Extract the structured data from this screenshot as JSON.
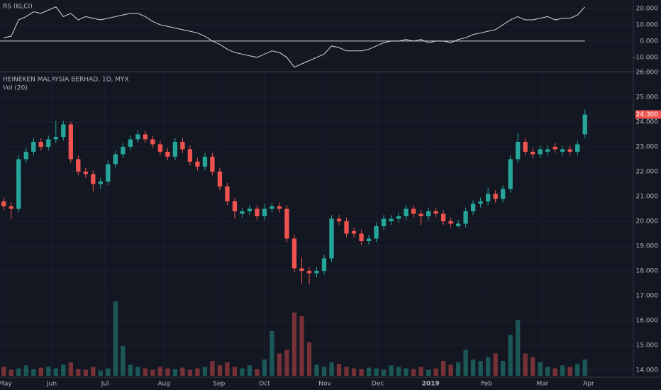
{
  "chart_data": [
    {
      "type": "line",
      "title": "RS (KLCI)",
      "color": "#d1d4dc",
      "values": [
        2,
        3,
        13,
        15,
        18,
        17,
        19,
        21,
        15,
        17,
        13,
        15,
        14,
        13,
        14,
        15,
        16,
        17,
        17,
        15,
        12,
        10,
        9,
        8,
        7,
        6,
        5,
        3,
        0,
        -2,
        -5,
        -7,
        -8,
        -9,
        -10,
        -8,
        -6,
        -7,
        -10,
        -16,
        -14,
        -12,
        -10,
        -8,
        -3,
        -4,
        -6,
        -6,
        -6,
        -5,
        -3,
        -1,
        0,
        0,
        1,
        0,
        1,
        -1,
        0,
        0,
        -1,
        1,
        2,
        4,
        5,
        6,
        7,
        10,
        13,
        15,
        13,
        13,
        14,
        15,
        13,
        14,
        14,
        16,
        21
      ],
      "ylim": [
        -18.3,
        25.2
      ],
      "yticks": [
        {
          "value": 20,
          "label": "20.000"
        },
        {
          "value": 10,
          "label": "10.000"
        },
        {
          "value": 0,
          "label": "0.000"
        },
        {
          "value": -10,
          "label": "-10.000"
        }
      ]
    },
    {
      "type": "candlestick",
      "title": "HEINEKEN MALAYSIA BERHAD, 1D, MYX",
      "subtitle": "Vol (20)",
      "up_color": "#26a69a",
      "down_color": "#ef5350",
      "open": [
        20.8,
        20.6,
        20.5,
        22.5,
        22.8,
        23.2,
        23.0,
        23.3,
        23.4,
        23.9,
        22.5,
        22.0,
        21.9,
        21.5,
        21.6,
        22.3,
        22.7,
        23.0,
        23.3,
        23.5,
        23.3,
        23.1,
        22.8,
        22.6,
        23.2,
        22.9,
        22.4,
        22.2,
        22.6,
        22.0,
        21.4,
        20.8,
        20.3,
        20.4,
        20.5,
        20.2,
        20.5,
        20.6,
        20.5,
        19.3,
        18.1,
        18.0,
        17.9,
        18.0,
        18.5,
        20.1,
        20.0,
        19.6,
        19.5,
        19.2,
        19.3,
        19.8,
        20.0,
        20.1,
        20.2,
        20.5,
        20.3,
        20.2,
        20.4,
        20.3,
        20.0,
        19.8,
        19.9,
        20.4,
        20.7,
        20.8,
        21.1,
        20.9,
        21.3,
        22.5,
        23.2,
        22.8,
        22.7,
        22.8,
        23.0,
        22.8,
        22.9,
        22.8,
        23.5
      ],
      "high": [
        20.95,
        20.75,
        22.65,
        22.95,
        23.35,
        23.35,
        23.45,
        24.05,
        24.05,
        24.0,
        22.65,
        22.15,
        22.05,
        21.75,
        22.45,
        22.85,
        23.15,
        23.45,
        23.65,
        23.65,
        23.45,
        23.25,
        22.95,
        23.35,
        23.35,
        23.05,
        22.55,
        22.75,
        22.75,
        22.15,
        21.55,
        20.95,
        20.55,
        20.65,
        20.65,
        20.7,
        20.75,
        20.75,
        20.65,
        19.45,
        18.55,
        18.15,
        18.15,
        18.65,
        20.25,
        20.25,
        20.15,
        19.75,
        19.65,
        19.45,
        19.95,
        20.25,
        20.25,
        20.35,
        20.65,
        20.65,
        20.45,
        20.55,
        20.55,
        20.45,
        20.15,
        20.05,
        20.55,
        20.85,
        20.95,
        21.35,
        21.25,
        21.45,
        22.65,
        23.55,
        23.35,
        22.95,
        23.05,
        23.05,
        23.15,
        23.05,
        23.05,
        23.25,
        24.5
      ],
      "low": [
        20.45,
        20.1,
        20.35,
        22.35,
        22.65,
        22.85,
        22.85,
        23.15,
        23.25,
        22.35,
        21.85,
        21.75,
        21.2,
        21.3,
        21.45,
        22.15,
        22.55,
        22.85,
        23.15,
        23.15,
        22.95,
        22.65,
        22.45,
        22.45,
        22.75,
        22.25,
        22.05,
        22.05,
        21.85,
        21.25,
        20.65,
        20.1,
        20.15,
        20.25,
        20.05,
        20.05,
        20.35,
        20.35,
        19.15,
        17.95,
        17.5,
        17.45,
        17.75,
        17.85,
        18.35,
        19.85,
        19.35,
        19.35,
        19.05,
        19.05,
        19.15,
        19.65,
        19.85,
        19.95,
        20.05,
        20.15,
        19.85,
        20.05,
        20.15,
        19.85,
        19.75,
        19.75,
        19.75,
        20.25,
        20.55,
        20.65,
        20.75,
        20.75,
        21.15,
        22.35,
        22.65,
        22.55,
        22.55,
        22.65,
        22.75,
        22.65,
        22.65,
        22.65,
        23.35
      ],
      "close": [
        20.6,
        20.5,
        22.5,
        22.8,
        23.2,
        23.0,
        23.3,
        23.4,
        23.9,
        22.5,
        22.0,
        21.9,
        21.5,
        21.6,
        22.3,
        22.7,
        23.0,
        23.3,
        23.5,
        23.3,
        23.1,
        22.8,
        22.6,
        23.2,
        22.9,
        22.4,
        22.2,
        22.6,
        22.0,
        21.4,
        20.8,
        20.4,
        20.4,
        20.5,
        20.2,
        20.5,
        20.6,
        20.5,
        19.3,
        18.1,
        18.0,
        17.9,
        18.0,
        18.5,
        20.1,
        20.0,
        19.5,
        19.5,
        19.2,
        19.3,
        19.8,
        20.1,
        20.1,
        20.2,
        20.5,
        20.3,
        20.2,
        20.4,
        20.3,
        20.0,
        19.9,
        19.9,
        20.4,
        20.7,
        20.8,
        21.1,
        20.9,
        21.3,
        22.5,
        23.2,
        22.8,
        22.7,
        22.9,
        22.9,
        22.9,
        22.9,
        22.8,
        23.1,
        24.3
      ],
      "volume": [
        12,
        8,
        10,
        14,
        9,
        11,
        12,
        10,
        15,
        18,
        9,
        8,
        12,
        7,
        10,
        100,
        40,
        15,
        12,
        10,
        8,
        12,
        10,
        9,
        11,
        8,
        10,
        12,
        20,
        14,
        18,
        12,
        10,
        14,
        9,
        22,
        60,
        30,
        35,
        85,
        80,
        45,
        15,
        12,
        18,
        16,
        12,
        10,
        9,
        11,
        10,
        8,
        14,
        12,
        10,
        9,
        12,
        8,
        10,
        20,
        15,
        18,
        35,
        22,
        20,
        25,
        30,
        20,
        55,
        75,
        30,
        25,
        18,
        12,
        10,
        14,
        12,
        16,
        22
      ],
      "volume_ylim": [
        0,
        100
      ],
      "ylim": [
        13.77,
        26
      ],
      "yticks": [
        {
          "value": 26,
          "label": "26.000"
        },
        {
          "value": 25,
          "label": "25.000"
        },
        {
          "value": 24,
          "label": "24.000"
        },
        {
          "value": 23,
          "label": "23.000"
        },
        {
          "value": 22,
          "label": "22.000"
        },
        {
          "value": 21,
          "label": "21.000"
        },
        {
          "value": 20,
          "label": "20.000"
        },
        {
          "value": 19,
          "label": "19.000"
        },
        {
          "value": 18,
          "label": "18.000"
        },
        {
          "value": 17,
          "label": "17.000"
        },
        {
          "value": 16,
          "label": "16.000"
        },
        {
          "value": 15,
          "label": "15.000"
        },
        {
          "value": 14,
          "label": "14.000"
        }
      ],
      "last_price": {
        "value": 24.3,
        "label": "24.300"
      },
      "xlim": [
        -0.5,
        84.5
      ],
      "xticks": [
        {
          "value": 0.2,
          "label": "May"
        },
        {
          "value": 6.45,
          "label": "Jun"
        },
        {
          "value": 13.6,
          "label": "Jul"
        },
        {
          "value": 21.5,
          "label": "Aug"
        },
        {
          "value": 28.9,
          "label": "Sep"
        },
        {
          "value": 35,
          "label": "Oct"
        },
        {
          "value": 43.1,
          "label": "Nov"
        },
        {
          "value": 50.2,
          "label": "Dec"
        },
        {
          "value": 57.3,
          "label": "2019"
        },
        {
          "value": 64.8,
          "label": "Feb"
        },
        {
          "value": 72.3,
          "label": "Mar"
        },
        {
          "value": 78.5,
          "label": "Apr"
        }
      ],
      "grid": true
    }
  ]
}
